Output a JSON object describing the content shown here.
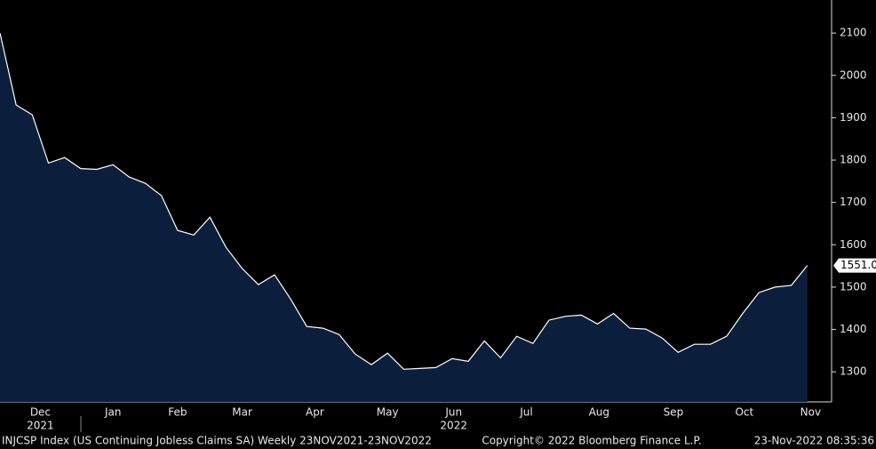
{
  "chart_data": {
    "type": "area",
    "values": [
      2100,
      1930,
      1907,
      1793,
      1806,
      1780,
      1778,
      1789,
      1760,
      1745,
      1716,
      1634,
      1623,
      1665,
      1594,
      1544,
      1506,
      1529,
      1472,
      1407,
      1403,
      1388,
      1342,
      1317,
      1344,
      1306,
      1308,
      1310,
      1331,
      1325,
      1373,
      1333,
      1384,
      1367,
      1422,
      1431,
      1434,
      1413,
      1438,
      1403,
      1401,
      1380,
      1346,
      1365,
      1365,
      1384,
      1438,
      1487,
      1500,
      1504,
      1551
    ],
    "last_value_label": "1551.0",
    "color": "#0b1f3d",
    "line_color": "#ffffff",
    "xlim": [
      0,
      51.5
    ],
    "xticks": [
      {
        "value": 2.5,
        "label": "Dec"
      },
      {
        "value": 7.0,
        "label": "Jan"
      },
      {
        "value": 11.0,
        "label": "Feb"
      },
      {
        "value": 15.0,
        "label": "Mar"
      },
      {
        "value": 19.5,
        "label": "Apr"
      },
      {
        "value": 24.0,
        "label": "May"
      },
      {
        "value": 28.1,
        "label": "Jun"
      },
      {
        "value": 32.6,
        "label": "Jul"
      },
      {
        "value": 37.1,
        "label": "Aug"
      },
      {
        "value": 41.7,
        "label": "Sep"
      },
      {
        "value": 46.1,
        "label": "Oct"
      },
      {
        "value": 50.2,
        "label": "Nov"
      }
    ],
    "year_labels": [
      {
        "value": 2.5,
        "label": "2021"
      },
      {
        "value": 28.1,
        "label": "2022"
      }
    ],
    "ylim": [
      1229,
      2178
    ],
    "yticks": [
      1300,
      1400,
      1500,
      1600,
      1700,
      1800,
      1900,
      2000,
      2100
    ],
    "footer": {
      "left": "INJCSP Index (US Continuing Jobless Claims SA)  Weekly 23NOV2021-23NOV2022",
      "center": "Copyright© 2022 Bloomberg Finance L.P.",
      "right": "23-Nov-2022 08:35:36"
    }
  }
}
